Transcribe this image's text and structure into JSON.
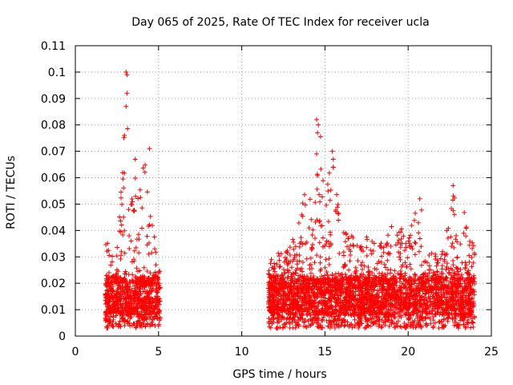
{
  "chart_data": {
    "type": "scatter",
    "title": "Day 065 of 2025, Rate Of TEC Index for receiver ucla",
    "xlabel": "GPS time / hours",
    "ylabel": "ROTI / TECUs",
    "xlim": [
      0,
      25
    ],
    "ylim": [
      0,
      0.11
    ],
    "xticks": [
      "0",
      "5",
      "10",
      "15",
      "20",
      "25"
    ],
    "yticks": [
      "0",
      "0.01",
      "0.02",
      "0.03",
      "0.04",
      "0.05",
      "0.06",
      "0.07",
      "0.08",
      "0.09",
      "0.1",
      "0.11"
    ],
    "grid": true,
    "marker": "+",
    "color": "#ff0000",
    "segments": [
      {
        "x_start": 1.8,
        "x_end": 5.1
      },
      {
        "x_start": 11.6,
        "x_end": 24.0
      }
    ],
    "envelope": [
      {
        "x": 1.8,
        "upper": 0.035
      },
      {
        "x": 2.0,
        "upper": 0.036
      },
      {
        "x": 2.2,
        "upper": 0.034
      },
      {
        "x": 2.5,
        "upper": 0.035
      },
      {
        "x": 2.7,
        "upper": 0.05
      },
      {
        "x": 2.9,
        "upper": 0.075
      },
      {
        "x": 3.0,
        "upper": 0.1
      },
      {
        "x": 3.1,
        "upper": 0.099
      },
      {
        "x": 3.2,
        "upper": 0.07
      },
      {
        "x": 3.4,
        "upper": 0.055
      },
      {
        "x": 3.6,
        "upper": 0.067
      },
      {
        "x": 3.8,
        "upper": 0.05
      },
      {
        "x": 4.0,
        "upper": 0.065
      },
      {
        "x": 4.3,
        "upper": 0.07
      },
      {
        "x": 4.5,
        "upper": 0.071
      },
      {
        "x": 4.7,
        "upper": 0.04
      },
      {
        "x": 5.0,
        "upper": 0.03
      },
      {
        "x": 5.1,
        "upper": 0.025
      },
      {
        "x": 11.6,
        "upper": 0.025
      },
      {
        "x": 12.0,
        "upper": 0.035
      },
      {
        "x": 12.5,
        "upper": 0.03
      },
      {
        "x": 13.0,
        "upper": 0.038
      },
      {
        "x": 13.5,
        "upper": 0.045
      },
      {
        "x": 13.8,
        "upper": 0.06
      },
      {
        "x": 14.0,
        "upper": 0.058
      },
      {
        "x": 14.3,
        "upper": 0.06
      },
      {
        "x": 14.5,
        "upper": 0.082
      },
      {
        "x": 14.7,
        "upper": 0.08
      },
      {
        "x": 15.0,
        "upper": 0.05
      },
      {
        "x": 15.4,
        "upper": 0.07
      },
      {
        "x": 15.7,
        "upper": 0.06
      },
      {
        "x": 16.0,
        "upper": 0.045
      },
      {
        "x": 16.5,
        "upper": 0.042
      },
      {
        "x": 17.0,
        "upper": 0.035
      },
      {
        "x": 17.5,
        "upper": 0.04
      },
      {
        "x": 18.0,
        "upper": 0.037
      },
      {
        "x": 18.5,
        "upper": 0.035
      },
      {
        "x": 19.0,
        "upper": 0.044
      },
      {
        "x": 19.5,
        "upper": 0.04
      },
      {
        "x": 20.0,
        "upper": 0.045
      },
      {
        "x": 20.5,
        "upper": 0.047
      },
      {
        "x": 20.7,
        "upper": 0.052
      },
      {
        "x": 21.0,
        "upper": 0.04
      },
      {
        "x": 21.5,
        "upper": 0.03
      },
      {
        "x": 22.0,
        "upper": 0.035
      },
      {
        "x": 22.5,
        "upper": 0.048
      },
      {
        "x": 22.7,
        "upper": 0.057
      },
      {
        "x": 23.0,
        "upper": 0.045
      },
      {
        "x": 23.3,
        "upper": 0.05
      },
      {
        "x": 23.6,
        "upper": 0.038
      },
      {
        "x": 24.0,
        "upper": 0.035
      }
    ],
    "lower_bound": 0.003,
    "typical_range": [
      0.008,
      0.022
    ],
    "notable_peaks": [
      {
        "x": 3.05,
        "y": 0.1
      },
      {
        "x": 3.1,
        "y": 0.099
      },
      {
        "x": 3.1,
        "y": 0.092
      },
      {
        "x": 3.05,
        "y": 0.087
      },
      {
        "x": 2.95,
        "y": 0.076
      },
      {
        "x": 4.45,
        "y": 0.071
      },
      {
        "x": 3.6,
        "y": 0.067
      },
      {
        "x": 14.5,
        "y": 0.082
      },
      {
        "x": 14.6,
        "y": 0.08
      },
      {
        "x": 14.55,
        "y": 0.077
      },
      {
        "x": 14.5,
        "y": 0.069
      },
      {
        "x": 15.45,
        "y": 0.07
      },
      {
        "x": 15.5,
        "y": 0.067
      },
      {
        "x": 15.5,
        "y": 0.064
      },
      {
        "x": 22.7,
        "y": 0.057
      },
      {
        "x": 20.7,
        "y": 0.052
      }
    ]
  }
}
